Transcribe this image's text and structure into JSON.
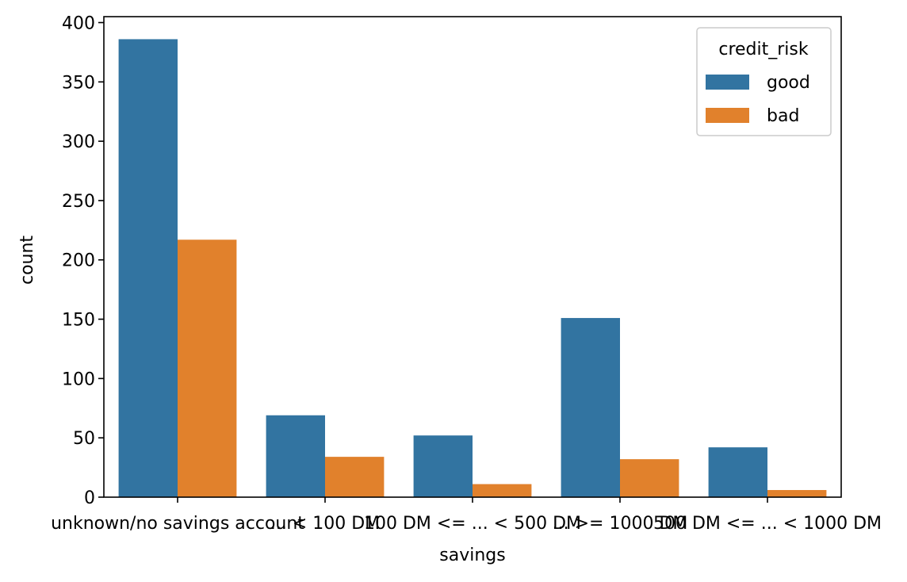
{
  "chart_data": {
    "type": "bar",
    "xlabel": "savings",
    "ylabel": "count",
    "ylim": [
      0,
      405
    ],
    "yticks": [
      0,
      50,
      100,
      150,
      200,
      250,
      300,
      350,
      400
    ],
    "categories": [
      "unknown/no savings account",
      "... <  100 DM",
      "100 DM <= ... <  500 DM",
      "... >= 1000 DM",
      "500 DM <= ... < 1000 DM"
    ],
    "series": [
      {
        "name": "good",
        "color": "#3274a1",
        "values": [
          386,
          69,
          52,
          151,
          42
        ]
      },
      {
        "name": "bad",
        "color": "#e1812c",
        "values": [
          217,
          34,
          11,
          32,
          6
        ]
      }
    ],
    "legend": {
      "title": "credit_risk",
      "position": "upper-right"
    },
    "grid": false
  }
}
